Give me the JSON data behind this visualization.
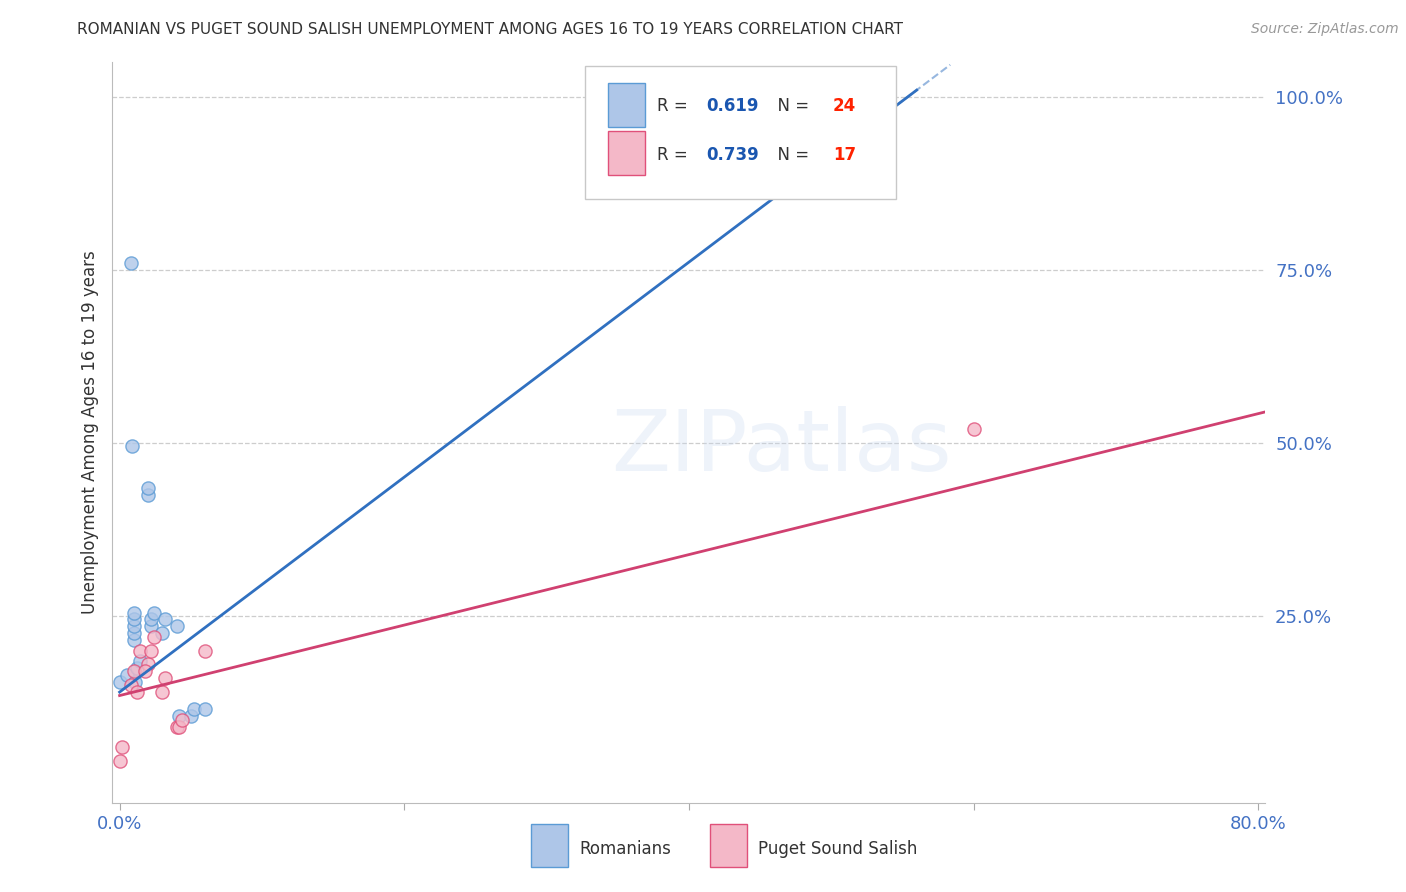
{
  "title": "ROMANIAN VS PUGET SOUND SALISH UNEMPLOYMENT AMONG AGES 16 TO 19 YEARS CORRELATION CHART",
  "source": "Source: ZipAtlas.com",
  "ylabel": "Unemployment Among Ages 16 to 19 years",
  "xlim": [
    -0.005,
    0.805
  ],
  "ylim": [
    -0.02,
    1.05
  ],
  "xticks": [
    0.0,
    0.2,
    0.4,
    0.6,
    0.8
  ],
  "yticks": [
    0.25,
    0.5,
    0.75,
    1.0
  ],
  "grid_color": "#c8c8c8",
  "background_color": "#ffffff",
  "romanians": {
    "x": [
      0.0,
      0.005,
      0.01,
      0.01,
      0.01,
      0.01,
      0.01,
      0.012,
      0.014,
      0.02,
      0.02,
      0.022,
      0.022,
      0.024,
      0.03,
      0.032,
      0.04,
      0.042,
      0.05,
      0.052,
      0.06,
      0.008,
      0.009,
      0.011
    ],
    "y": [
      0.155,
      0.165,
      0.215,
      0.225,
      0.235,
      0.245,
      0.255,
      0.175,
      0.185,
      0.425,
      0.435,
      0.235,
      0.245,
      0.255,
      0.225,
      0.245,
      0.235,
      0.105,
      0.105,
      0.115,
      0.115,
      0.76,
      0.495,
      0.155
    ],
    "color": "#aec6e8",
    "edge_color": "#5b9bd5",
    "size": 90,
    "R": 0.619,
    "N": 24,
    "label": "Romanians",
    "line_color": "#3070c0",
    "line_x0": 0.0,
    "line_y0": 0.14,
    "line_x1": 0.56,
    "line_y1": 1.01
  },
  "puget": {
    "x": [
      0.0,
      0.002,
      0.008,
      0.01,
      0.012,
      0.014,
      0.02,
      0.022,
      0.024,
      0.018,
      0.03,
      0.032,
      0.04,
      0.042,
      0.044,
      0.6,
      0.06
    ],
    "y": [
      0.04,
      0.06,
      0.15,
      0.17,
      0.14,
      0.2,
      0.18,
      0.2,
      0.22,
      0.17,
      0.14,
      0.16,
      0.09,
      0.09,
      0.1,
      0.52,
      0.2
    ],
    "color": "#f4b8c8",
    "edge_color": "#e0507a",
    "size": 90,
    "R": 0.739,
    "N": 17,
    "label": "Puget Sound Salish",
    "line_color": "#d04070",
    "line_x0": 0.0,
    "line_y0": 0.135,
    "line_x1": 0.805,
    "line_y1": 0.545
  },
  "watermark": "ZIPatlas",
  "axis_color": "#4472c4",
  "legend_R_color": "#1a56b0",
  "legend_N_color": "#ff2200"
}
